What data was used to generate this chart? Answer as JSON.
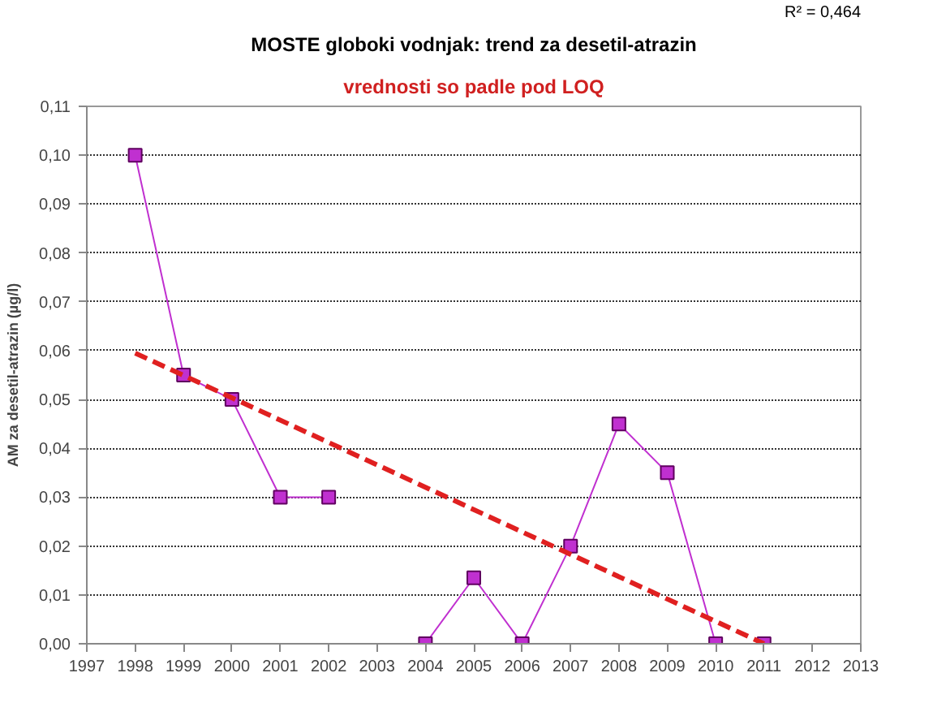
{
  "chart_data": {
    "type": "line",
    "title": "MOSTE globoki vodnjak: trend za desetil-atrazin",
    "subtitle": "vrednosti so padle pod LOQ",
    "ylabel": "AM za desetil-atrazin (µg/l)",
    "annotations": [
      "R² = 0,464"
    ],
    "xlim": [
      1997,
      2013
    ],
    "xticks": [
      1997,
      1998,
      1999,
      2000,
      2001,
      2002,
      2003,
      2004,
      2005,
      2006,
      2007,
      2008,
      2009,
      2010,
      2011,
      2012,
      2013
    ],
    "ylim": [
      0,
      0.11
    ],
    "yticks": [
      {
        "value": 0,
        "label": "0,00"
      },
      {
        "value": 0.01,
        "label": "0,01"
      },
      {
        "value": 0.02,
        "label": "0,02"
      },
      {
        "value": 0.03,
        "label": "0,03"
      },
      {
        "value": 0.04,
        "label": "0,04"
      },
      {
        "value": 0.05,
        "label": "0,05"
      },
      {
        "value": 0.06,
        "label": "0,06"
      },
      {
        "value": 0.07,
        "label": "0,07"
      },
      {
        "value": 0.08,
        "label": "0,08"
      },
      {
        "value": 0.09,
        "label": "0,09"
      },
      {
        "value": 0.1,
        "label": "0,10"
      },
      {
        "value": 0.11,
        "label": "0,11"
      }
    ],
    "grid": "y",
    "series": [
      {
        "color": "#c030d0",
        "marker": "square",
        "line_style": "solid",
        "x": [
          1998,
          1999,
          2000,
          2001,
          2002,
          2003,
          2004,
          2005,
          2006,
          2007,
          2008,
          2009,
          2010,
          2011
        ],
        "values": [
          0.1,
          0.055,
          0.05,
          0.03,
          0.03,
          null,
          0.0,
          0.0135,
          0.0,
          0.02,
          0.045,
          0.035,
          0.0,
          0.0
        ]
      },
      {
        "color": "#e02020",
        "marker": "none",
        "line_style": "dashed",
        "x": [
          1998,
          2011
        ],
        "values": [
          0.0595,
          0.0
        ]
      }
    ]
  }
}
